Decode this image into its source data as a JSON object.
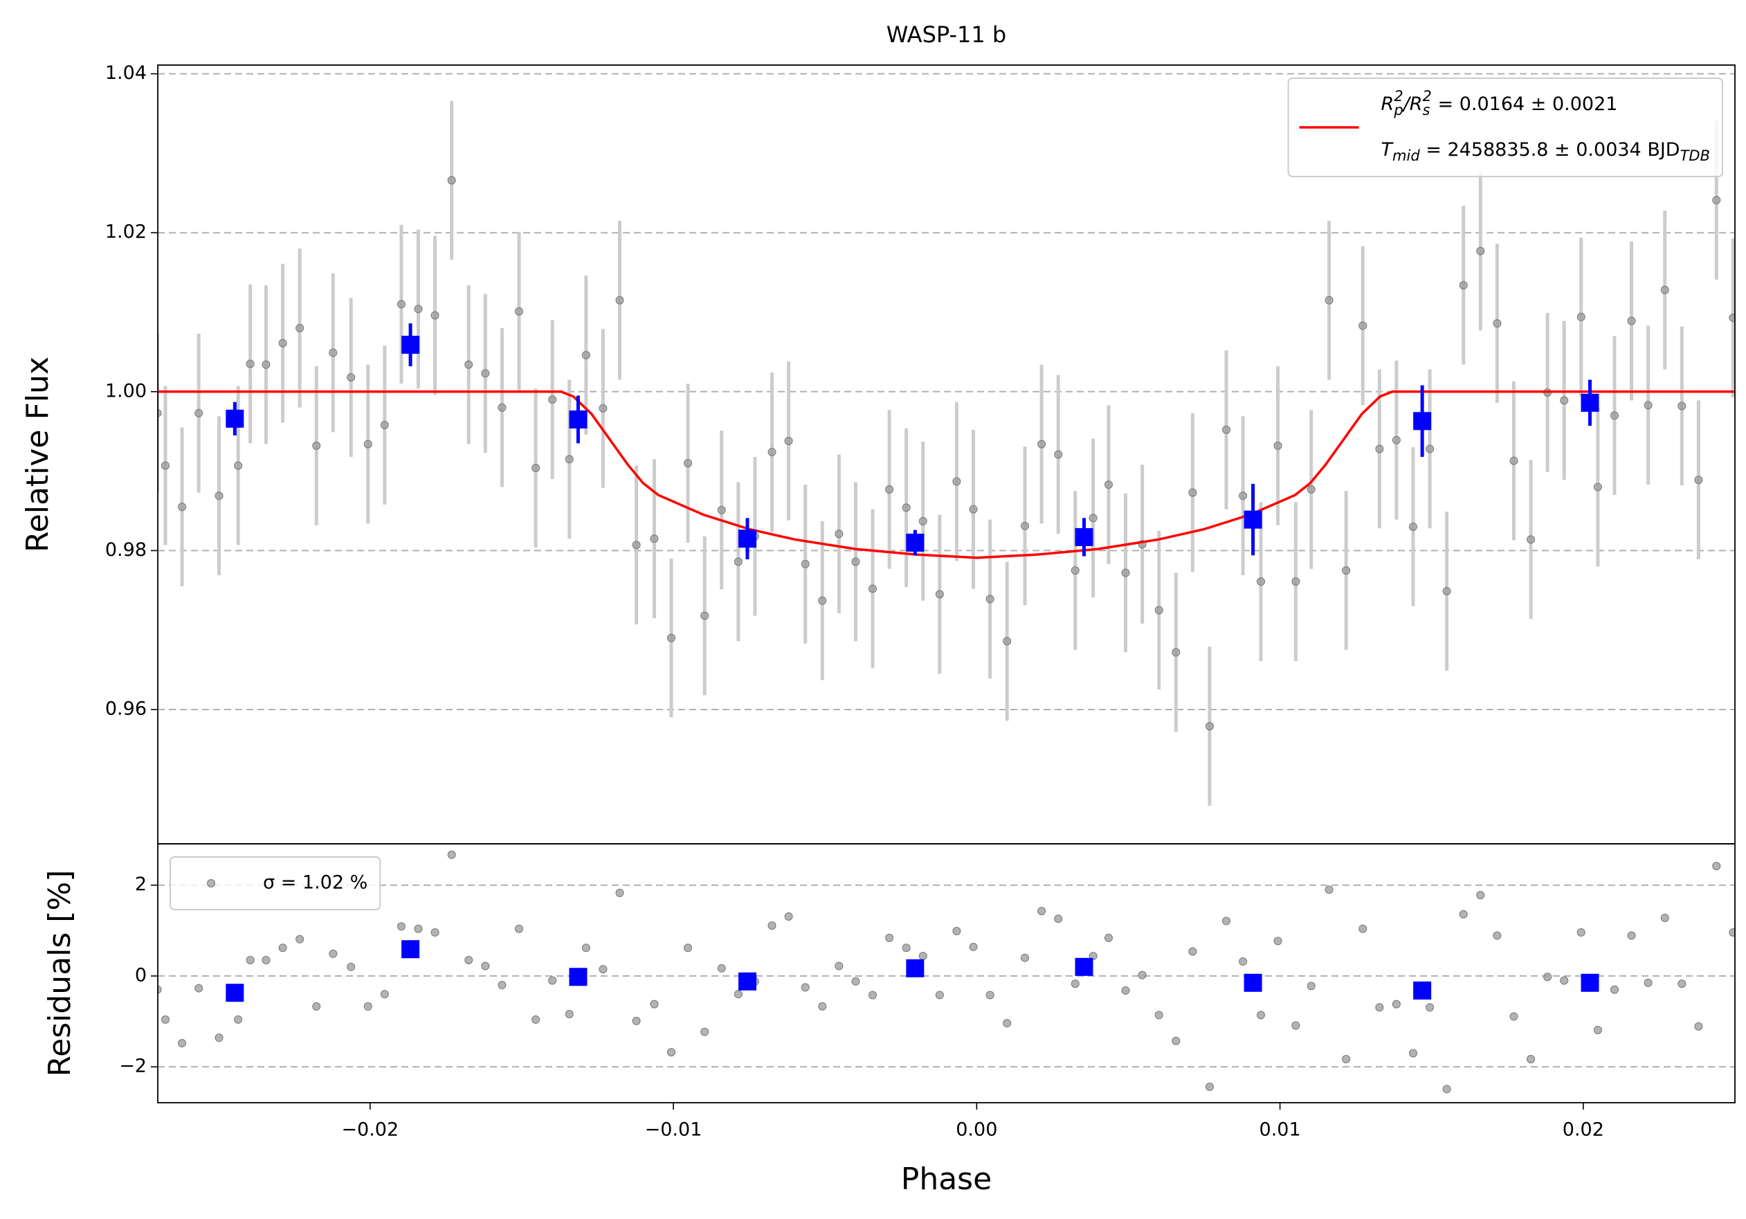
{
  "chart_data": [
    {
      "type": "errorbar",
      "title": "WASP-11 b",
      "y_label": "Relative Flux",
      "xlim": [
        -0.027,
        0.025
      ],
      "ylim": [
        0.9431,
        1.0411
      ],
      "yticks": [
        0.96,
        0.98,
        {
          "value": 1,
          "label": "1.00"
        },
        1.02,
        1.04
      ],
      "grid": true,
      "legend": "upper right",
      "series": [
        {
          "marker": "circle",
          "color": "#999999",
          "error_color": "#cccccc",
          "error": 0.01,
          "x": [
            -0.02701,
            -0.02675,
            -0.0262,
            -0.02565,
            -0.02498,
            -0.02435,
            -0.02395,
            -0.02343,
            -0.02288,
            -0.02232,
            -0.02177,
            -0.02122,
            -0.02063,
            -0.02007,
            -0.01952,
            -0.01897,
            -0.01841,
            -0.01786,
            -0.01731,
            -0.01675,
            -0.0162,
            -0.01565,
            -0.01509,
            -0.01454,
            -0.01399,
            -0.01343,
            -0.01288,
            -0.01232,
            -0.01177,
            -0.01122,
            -0.01063,
            -0.01007,
            -0.00952,
            -0.00897,
            -0.00841,
            -0.00786,
            -0.00731,
            -0.00675,
            -0.0062,
            -0.00565,
            -0.00509,
            -0.00454,
            -0.00399,
            -0.00343,
            -0.00288,
            -0.00232,
            -0.00177,
            -0.00122,
            -0.00066,
            -0.00011,
            0.00044,
            0.001,
            0.00159,
            0.00214,
            0.00269,
            0.00325,
            0.00384,
            0.00435,
            0.00491,
            0.00546,
            0.00601,
            0.00657,
            0.00712,
            0.00768,
            0.00823,
            0.00878,
            0.00937,
            0.00993,
            0.01052,
            0.01103,
            0.01162,
            0.01218,
            0.01273,
            0.01328,
            0.01384,
            0.01439,
            0.01494,
            0.0155,
            0.01605,
            0.01661,
            0.01716,
            0.01771,
            0.01827,
            0.01882,
            0.01937,
            0.01993,
            0.02048,
            0.02103,
            0.02159,
            0.02214,
            0.02269,
            0.02325,
            0.0238,
            0.02439,
            0.02494
          ],
          "values": [
            0.9973,
            0.9907,
            0.9855,
            0.9973,
            0.9869,
            0.9907,
            1.0035,
            1.0034,
            1.0061,
            1.008,
            0.9932,
            1.0049,
            1.0018,
            0.9934,
            0.9958,
            1.011,
            1.0104,
            1.0096,
            1.0266,
            1.0034,
            1.0023,
            0.998,
            1.0101,
            0.9904,
            0.999,
            0.9915,
            1.0046,
            0.9979,
            1.0115,
            0.9807,
            0.9815,
            0.969,
            0.991,
            0.9718,
            0.9851,
            0.9786,
            0.9818,
            0.9924,
            0.9938,
            0.9783,
            0.9737,
            0.9821,
            0.9786,
            0.9752,
            0.9877,
            0.9854,
            0.9837,
            0.9745,
            0.9887,
            0.9852,
            0.9739,
            0.9686,
            0.9831,
            0.9934,
            0.9921,
            0.9775,
            0.9841,
            0.9883,
            0.9772,
            0.9808,
            0.9725,
            0.9672,
            0.9873,
            0.9579,
            0.9952,
            0.9869,
            0.9761,
            0.9932,
            0.9761,
            0.9877,
            1.0115,
            0.9775,
            1.0083,
            0.9928,
            0.9939,
            0.983,
            0.9928,
            0.9749,
            1.0134,
            1.0177,
            1.0086,
            0.9913,
            0.9814,
            0.9999,
            0.9989,
            1.0094,
            0.988,
            0.997,
            1.0089,
            0.9983,
            1.0128,
            0.9982,
            0.9889,
            1.0241,
            1.0093
          ]
        },
        {
          "marker": "line",
          "color": "#ff0000",
          "name": [
            [
              {
                "math": "R"
              },
              {
                "sub": "p"
              },
              {
                "sup": "2"
              },
              {
                "math": "/R"
              },
              {
                "sub": "s"
              },
              {
                "sup": "2"
              },
              {
                "text": " = 0.0164 ± 0.0021"
              }
            ],
            [
              {
                "math": "T"
              },
              {
                "sub": "mid"
              },
              {
                "text": " = 2458835.8 ± 0.0034 BJD"
              },
              {
                "sub": "TDB"
              }
            ]
          ],
          "x": [
            -0.027,
            -0.0137,
            -0.0133,
            -0.0127,
            -0.0121,
            -0.0115,
            -0.011,
            -0.0105,
            -0.009,
            -0.0075,
            -0.006,
            -0.004,
            -0.002,
            0,
            0.002,
            0.004,
            0.006,
            0.0075,
            0.009,
            0.0105,
            0.011,
            0.0115,
            0.0121,
            0.0127,
            0.0133,
            0.0137,
            0.025
          ],
          "values": [
            1,
            1,
            0.9994,
            0.9972,
            0.994,
            0.9908,
            0.9885,
            0.987,
            0.9845,
            0.9827,
            0.9814,
            0.9802,
            0.9795,
            0.9791,
            0.9795,
            0.9802,
            0.9814,
            0.9827,
            0.9845,
            0.987,
            0.9885,
            0.9908,
            0.994,
            0.9972,
            0.9994,
            1,
            1
          ]
        },
        {
          "marker": "square",
          "color": "#0000ff",
          "x": [
            -0.02446,
            -0.01867,
            -0.01314,
            -0.00756,
            -0.00203,
            0.00354,
            0.00911,
            0.01469,
            0.02022
          ],
          "values": [
            0.9966,
            1.0059,
            0.9965,
            0.9815,
            0.981,
            0.9817,
            0.9839,
            0.9963,
            0.9986
          ],
          "errors": [
            0.0021,
            0.0027,
            0.003,
            0.0026,
            0.0016,
            0.0024,
            0.0045,
            0.0045,
            0.0029
          ]
        }
      ]
    },
    {
      "type": "scatter",
      "y_label": "Residuals [%]",
      "x_label": "Phase",
      "xlim": [
        -0.027,
        0.025
      ],
      "ylim": [
        -2.79,
        2.91
      ],
      "xticks": [
        {
          "value": -0.02,
          "label": "−0.02"
        },
        {
          "value": -0.01,
          "label": "−0.01"
        },
        {
          "value": 0,
          "label": "0.00"
        },
        0.01,
        0.02
      ],
      "yticks": [
        {
          "value": -2,
          "label": "−2"
        },
        0,
        2
      ],
      "grid": true,
      "legend": "upper left",
      "series": [
        {
          "marker": "circle",
          "color": "#999999",
          "name": "σ = 1.02 %",
          "x": [
            -0.02701,
            -0.02675,
            -0.0262,
            -0.02565,
            -0.02498,
            -0.02435,
            -0.02395,
            -0.02343,
            -0.02288,
            -0.02232,
            -0.02177,
            -0.02122,
            -0.02063,
            -0.02007,
            -0.01952,
            -0.01897,
            -0.01841,
            -0.01786,
            -0.01731,
            -0.01675,
            -0.0162,
            -0.01565,
            -0.01509,
            -0.01454,
            -0.01399,
            -0.01343,
            -0.01288,
            -0.01232,
            -0.01177,
            -0.01122,
            -0.01063,
            -0.01007,
            -0.00952,
            -0.00897,
            -0.00841,
            -0.00786,
            -0.00731,
            -0.00675,
            -0.0062,
            -0.00565,
            -0.00509,
            -0.00454,
            -0.00399,
            -0.00343,
            -0.00288,
            -0.00232,
            -0.00177,
            -0.00122,
            -0.00066,
            -0.00011,
            0.00044,
            0.001,
            0.00159,
            0.00214,
            0.00269,
            0.00325,
            0.00384,
            0.00435,
            0.00491,
            0.00546,
            0.00601,
            0.00657,
            0.00712,
            0.00768,
            0.00823,
            0.00878,
            0.00937,
            0.00993,
            0.01052,
            0.01103,
            0.01162,
            0.01218,
            0.01273,
            0.01328,
            0.01384,
            0.01439,
            0.01494,
            0.0155,
            0.01605,
            0.01661,
            0.01716,
            0.01771,
            0.01827,
            0.01882,
            0.01937,
            0.01993,
            0.02048,
            0.02103,
            0.02159,
            0.02214,
            0.02269,
            0.02325,
            0.0238,
            0.02439,
            0.02494
          ],
          "values": [
            -0.3,
            -0.96,
            -1.48,
            -0.27,
            -1.36,
            -0.96,
            0.35,
            0.35,
            0.62,
            0.81,
            -0.67,
            0.49,
            0.2,
            -0.67,
            -0.4,
            1.09,
            1.04,
            0.96,
            2.67,
            0.35,
            0.22,
            -0.2,
            1.04,
            -0.96,
            -0.1,
            -0.84,
            0.62,
            0.15,
            1.83,
            -0.99,
            -0.62,
            -1.68,
            0.62,
            -1.23,
            0.17,
            -0.4,
            -0.12,
            1.11,
            1.31,
            -0.25,
            -0.67,
            0.22,
            -0.12,
            -0.42,
            0.84,
            0.62,
            0.44,
            -0.42,
            0.99,
            0.64,
            -0.42,
            -1.04,
            0.4,
            1.43,
            1.26,
            -0.17,
            0.44,
            0.84,
            -0.32,
            0.02,
            -0.86,
            -1.43,
            0.54,
            -2.44,
            1.21,
            0.32,
            -0.86,
            0.77,
            -1.09,
            -0.22,
            1.9,
            -1.83,
            1.04,
            -0.69,
            -0.62,
            -1.7,
            -0.69,
            -2.49,
            1.36,
            1.78,
            0.89,
            -0.89,
            -1.83,
            -0.02,
            -0.1,
            0.96,
            -1.19,
            -0.3,
            0.89,
            -0.15,
            1.28,
            -0.17,
            -1.11,
            2.42,
            0.96
          ]
        },
        {
          "marker": "square",
          "color": "#0000ff",
          "x": [
            -0.02446,
            -0.01867,
            -0.01314,
            -0.00756,
            -0.00203,
            0.00354,
            0.00911,
            0.01469,
            0.02022
          ],
          "values": [
            -0.37,
            0.59,
            -0.02,
            -0.12,
            0.17,
            0.2,
            -0.15,
            -0.32,
            -0.15
          ]
        }
      ]
    }
  ]
}
